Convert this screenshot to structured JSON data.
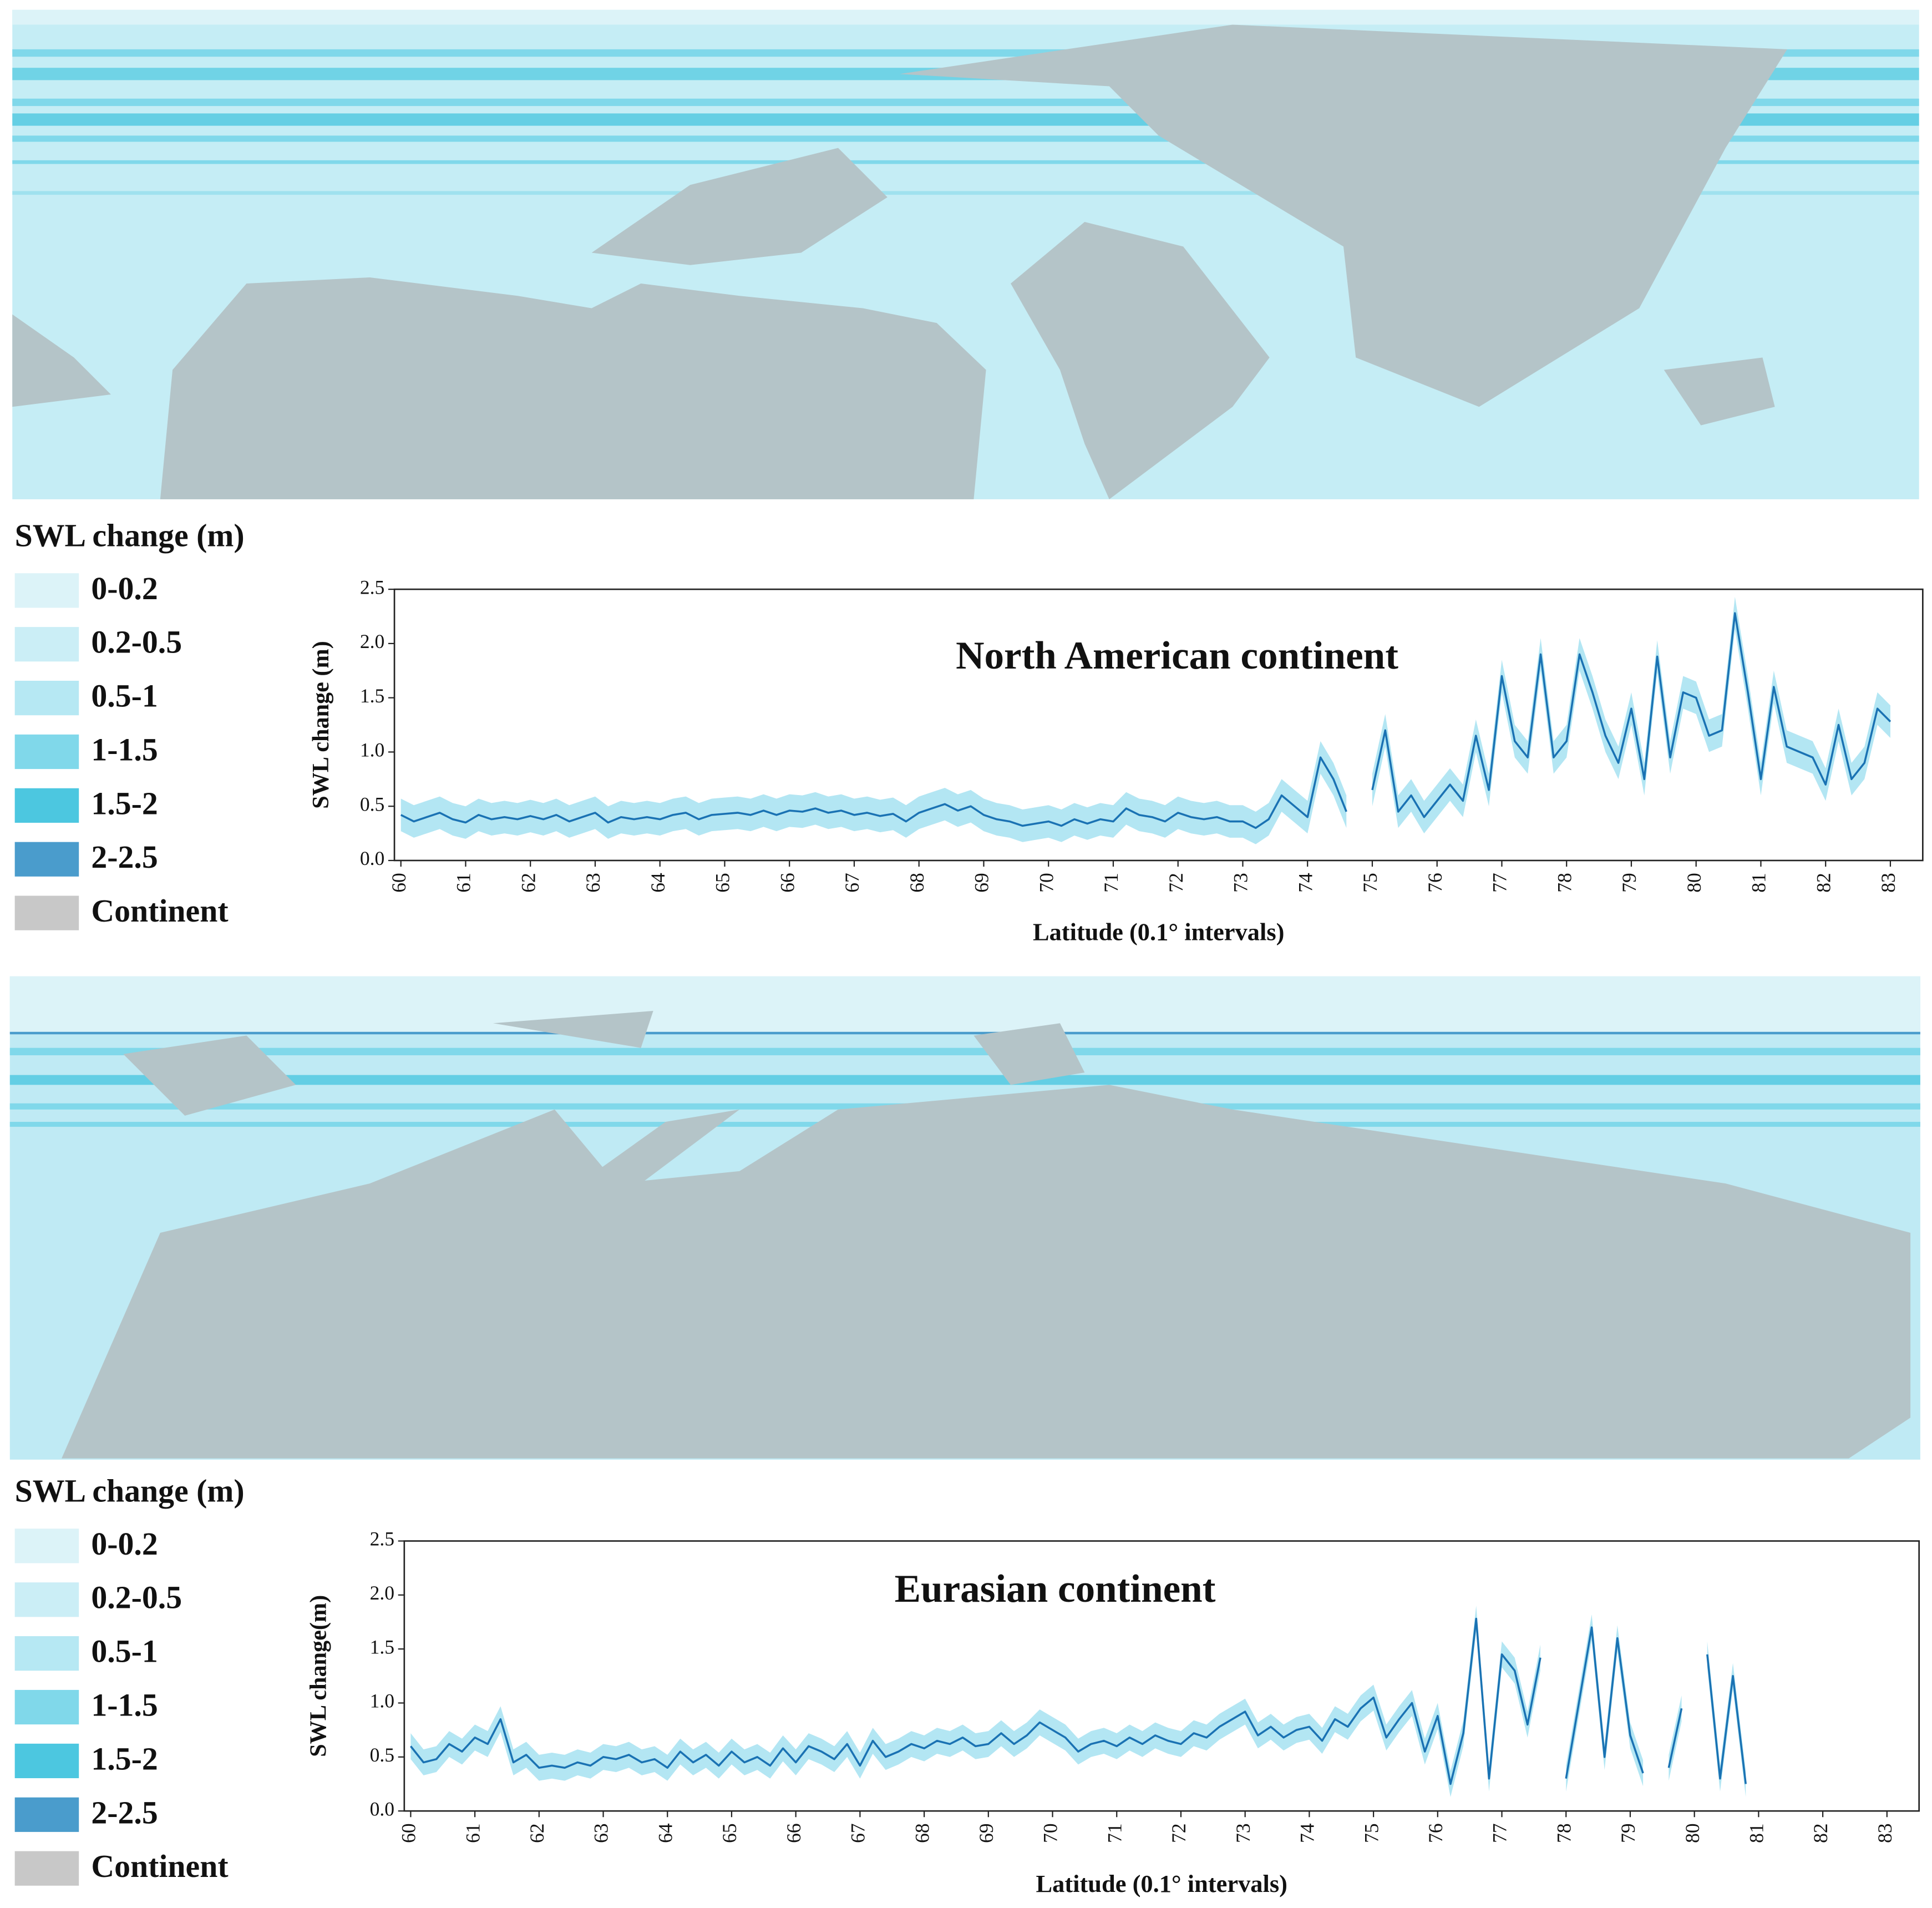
{
  "legends": [
    {
      "title": "SWL change (m)",
      "items": [
        {
          "label": "0-0.2",
          "color": "#dcf3f8"
        },
        {
          "label": "0.2-0.5",
          "color": "#cbeef6"
        },
        {
          "label": "0.5-1",
          "color": "#b6e8f3"
        },
        {
          "label": "1-1.5",
          "color": "#80d8ea"
        },
        {
          "label": "1.5-2",
          "color": "#4cc7e0"
        },
        {
          "label": "2-2.5",
          "color": "#4a9ccc"
        },
        {
          "label": "Continent",
          "color": "#c8c8c8"
        }
      ]
    },
    {
      "title": "SWL change (m)",
      "items": [
        {
          "label": "0-0.2",
          "color": "#dcf3f8"
        },
        {
          "label": "0.2-0.5",
          "color": "#cbeef6"
        },
        {
          "label": "0.5-1",
          "color": "#b6e8f3"
        },
        {
          "label": "1-1.5",
          "color": "#80d8ea"
        },
        {
          "label": "1.5-2",
          "color": "#4cc7e0"
        },
        {
          "label": "2-2.5",
          "color": "#4a9ccc"
        },
        {
          "label": "Continent",
          "color": "#c8c8c8"
        }
      ]
    }
  ],
  "chart_data": [
    {
      "type": "line",
      "title": "North American continent",
      "x_label": "Latitude (0.1° intervals)",
      "y_label": "SWL change (m)",
      "xlim": [
        59.9,
        83.5
      ],
      "xticks": [
        60,
        61,
        62,
        63,
        64,
        65,
        66,
        67,
        68,
        69,
        70,
        71,
        72,
        73,
        74,
        75,
        76,
        77,
        78,
        79,
        80,
        81,
        82,
        83
      ],
      "ylim": [
        0,
        2.5
      ],
      "yticks": [
        {
          "value": 0,
          "label": "0.0"
        },
        0.5,
        {
          "value": 1,
          "label": "1.0"
        },
        1.5,
        {
          "value": 2,
          "label": "2.0"
        },
        2.5
      ],
      "band": 0.15,
      "band_color": "#b3e6f3",
      "x": [
        60.0,
        60.2,
        60.4,
        60.6,
        60.8,
        61.0,
        61.2,
        61.4,
        61.6,
        61.8,
        62.0,
        62.2,
        62.4,
        62.6,
        62.8,
        63.0,
        63.2,
        63.4,
        63.6,
        63.8,
        64.0,
        64.2,
        64.4,
        64.6,
        64.8,
        65.0,
        65.2,
        65.4,
        65.6,
        65.8,
        66.0,
        66.2,
        66.4,
        66.6,
        66.8,
        67.0,
        67.2,
        67.4,
        67.6,
        67.8,
        68.0,
        68.2,
        68.4,
        68.6,
        68.8,
        69.0,
        69.2,
        69.4,
        69.6,
        69.8,
        70.0,
        70.2,
        70.4,
        70.6,
        70.8,
        71.0,
        71.2,
        71.4,
        71.6,
        71.8,
        72.0,
        72.2,
        72.4,
        72.6,
        72.8,
        73.0,
        73.2,
        73.4,
        73.6,
        73.8,
        74.0,
        74.2,
        74.4,
        74.6,
        74.8,
        75.0,
        75.2,
        75.4,
        75.6,
        75.8,
        76.0,
        76.2,
        76.4,
        76.6,
        76.8,
        77.0,
        77.2,
        77.4,
        77.6,
        77.8,
        78.0,
        78.2,
        78.4,
        78.6,
        78.8,
        79.0,
        79.2,
        79.4,
        79.6,
        79.8,
        80.0,
        80.2,
        80.4,
        80.6,
        80.8,
        81.0,
        81.2,
        81.4,
        81.6,
        81.8,
        82.0,
        82.2,
        82.4,
        82.6,
        82.8,
        83.0
      ],
      "series": [
        {
          "color": "#1a72b3",
          "values": [
            0.42,
            0.36,
            0.4,
            0.44,
            0.38,
            0.35,
            0.42,
            0.38,
            0.4,
            0.38,
            0.41,
            0.38,
            0.42,
            0.36,
            0.4,
            0.44,
            0.35,
            0.4,
            0.38,
            0.4,
            0.38,
            0.42,
            0.44,
            0.38,
            0.42,
            0.43,
            0.44,
            0.42,
            0.46,
            0.42,
            0.46,
            0.45,
            0.48,
            0.44,
            0.46,
            0.42,
            0.44,
            0.41,
            0.43,
            0.36,
            0.44,
            0.48,
            0.52,
            0.46,
            0.5,
            0.42,
            0.38,
            0.36,
            0.32,
            0.34,
            0.36,
            0.32,
            0.38,
            0.34,
            0.38,
            0.36,
            0.48,
            0.42,
            0.4,
            0.36,
            0.44,
            0.4,
            0.38,
            0.4,
            0.36,
            0.36,
            0.3,
            0.38,
            0.6,
            0.5,
            0.4,
            0.95,
            0.75,
            0.45,
            null,
            0.65,
            1.2,
            0.45,
            0.6,
            0.4,
            0.55,
            0.7,
            0.55,
            1.15,
            0.65,
            1.7,
            1.1,
            0.95,
            1.9,
            0.95,
            1.1,
            1.9,
            1.55,
            1.15,
            0.9,
            1.4,
            0.75,
            1.88,
            0.95,
            1.55,
            1.5,
            1.15,
            1.2,
            2.28,
            1.55,
            0.75,
            1.6,
            1.05,
            1.0,
            0.95,
            0.7,
            1.25,
            0.75,
            0.9,
            1.4,
            1.28
          ]
        }
      ]
    },
    {
      "type": "line",
      "title": "Eurasian continent",
      "x_label": "Latitude (0.1° intervals)",
      "y_label": "SWL change(m)",
      "xlim": [
        59.9,
        83.5
      ],
      "xticks": [
        60,
        61,
        62,
        63,
        64,
        65,
        66,
        67,
        68,
        69,
        70,
        71,
        72,
        73,
        74,
        75,
        76,
        77,
        78,
        79,
        80,
        81,
        82,
        83
      ],
      "ylim": [
        0,
        2.5
      ],
      "yticks": [
        {
          "value": 0,
          "label": "0.0"
        },
        0.5,
        {
          "value": 1,
          "label": "1.0"
        },
        1.5,
        {
          "value": 2,
          "label": "2.0"
        },
        2.5
      ],
      "band": 0.12,
      "band_color": "#b3e6f3",
      "x": [
        60.0,
        60.2,
        60.4,
        60.6,
        60.8,
        61.0,
        61.2,
        61.4,
        61.6,
        61.8,
        62.0,
        62.2,
        62.4,
        62.6,
        62.8,
        63.0,
        63.2,
        63.4,
        63.6,
        63.8,
        64.0,
        64.2,
        64.4,
        64.6,
        64.8,
        65.0,
        65.2,
        65.4,
        65.6,
        65.8,
        66.0,
        66.2,
        66.4,
        66.6,
        66.8,
        67.0,
        67.2,
        67.4,
        67.6,
        67.8,
        68.0,
        68.2,
        68.4,
        68.6,
        68.8,
        69.0,
        69.2,
        69.4,
        69.6,
        69.8,
        70.0,
        70.2,
        70.4,
        70.6,
        70.8,
        71.0,
        71.2,
        71.4,
        71.6,
        71.8,
        72.0,
        72.2,
        72.4,
        72.6,
        72.8,
        73.0,
        73.2,
        73.4,
        73.6,
        73.8,
        74.0,
        74.2,
        74.4,
        74.6,
        74.8,
        75.0,
        75.2,
        75.4,
        75.6,
        75.8,
        76.0,
        76.2,
        76.4,
        76.6,
        76.8,
        77.0,
        77.2,
        77.4,
        77.6,
        77.8,
        78.0,
        78.2,
        78.4,
        78.6,
        78.8,
        79.0,
        79.2,
        79.4,
        79.6,
        79.8,
        80.0,
        80.2,
        80.4,
        80.6,
        80.8,
        81.0,
        81.2,
        81.4,
        81.6,
        81.8,
        82.0,
        82.2,
        82.4,
        82.6,
        82.8,
        83.0
      ],
      "series": [
        {
          "color": "#1a72b3",
          "values": [
            0.6,
            0.45,
            0.48,
            0.62,
            0.55,
            0.68,
            0.62,
            0.85,
            0.45,
            0.52,
            0.4,
            0.42,
            0.4,
            0.45,
            0.42,
            0.5,
            0.48,
            0.52,
            0.45,
            0.48,
            0.4,
            0.55,
            0.45,
            0.52,
            0.42,
            0.55,
            0.45,
            0.5,
            0.42,
            0.58,
            0.45,
            0.6,
            0.55,
            0.48,
            0.62,
            0.42,
            0.65,
            0.5,
            0.55,
            0.62,
            0.58,
            0.65,
            0.62,
            0.68,
            0.6,
            0.62,
            0.72,
            0.62,
            0.7,
            0.82,
            0.75,
            0.68,
            0.55,
            0.62,
            0.65,
            0.6,
            0.68,
            0.62,
            0.7,
            0.65,
            0.62,
            0.72,
            0.68,
            0.78,
            0.85,
            0.92,
            0.7,
            0.78,
            0.68,
            0.75,
            0.78,
            0.65,
            0.85,
            0.78,
            0.95,
            1.05,
            0.68,
            0.85,
            1.0,
            0.55,
            0.88,
            0.25,
            0.72,
            1.78,
            0.3,
            1.45,
            1.3,
            0.8,
            1.42,
            null,
            0.3,
            1.0,
            1.7,
            0.5,
            1.6,
            0.7,
            0.35,
            null,
            0.4,
            0.95,
            null,
            1.45,
            0.3,
            1.25,
            0.25,
            null,
            null,
            null,
            null,
            null,
            null,
            null,
            null,
            null,
            null,
            null
          ]
        }
      ]
    }
  ]
}
